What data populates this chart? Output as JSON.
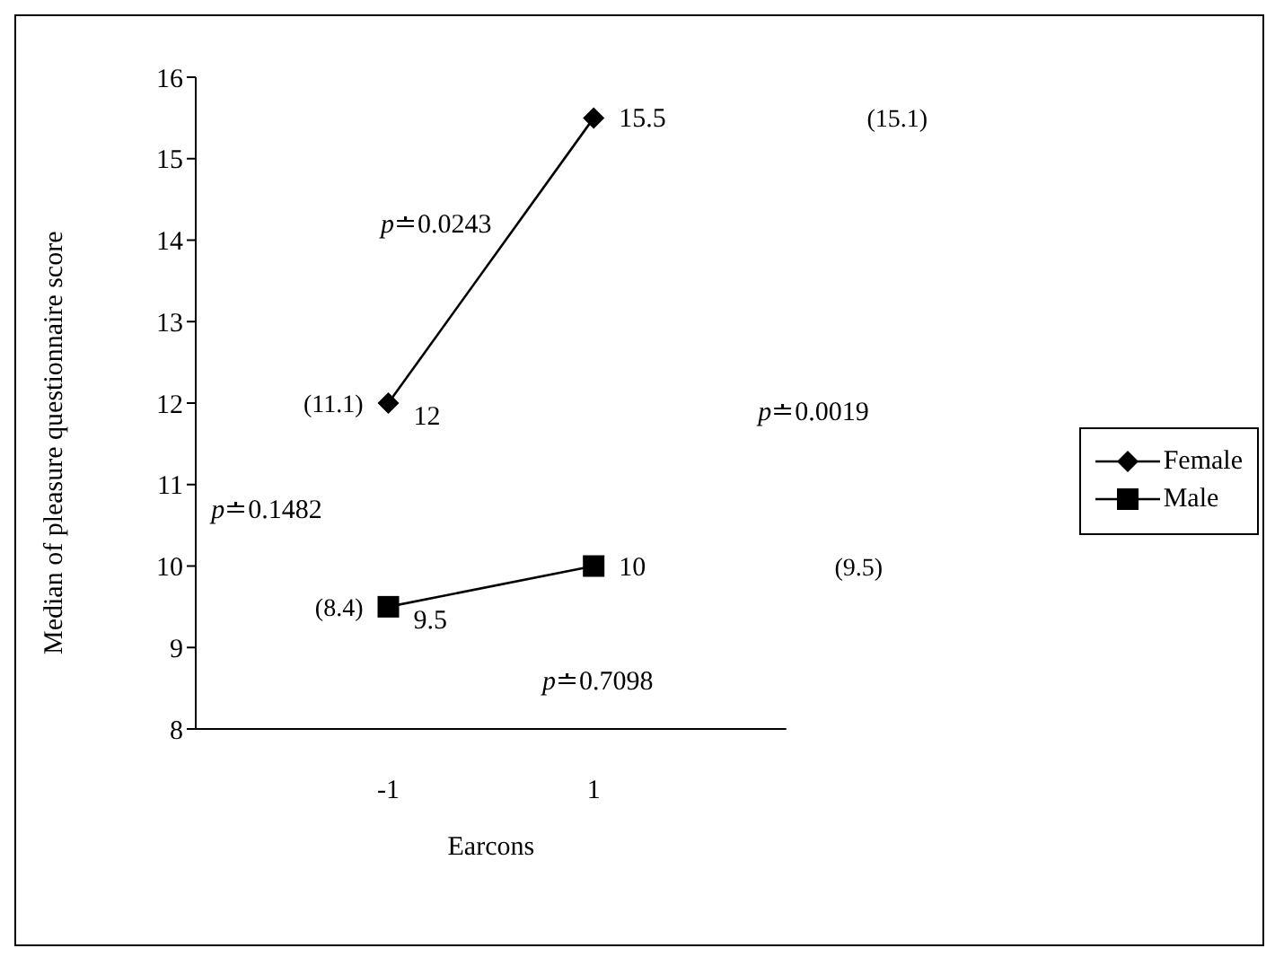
{
  "chart_data": {
    "type": "line",
    "xlabel": "Earcons",
    "ylabel": "Median of pleasure questionnaire score",
    "categories": [
      "-1",
      "1"
    ],
    "ylim": [
      8,
      16
    ],
    "yticks": [
      8,
      9,
      10,
      11,
      12,
      13,
      14,
      15,
      16
    ],
    "legend": "right",
    "series": [
      {
        "name": "Female",
        "color": "#000000",
        "marker": "diamond",
        "values": [
          12,
          15.5
        ],
        "value_labels": [
          "12",
          "15.5"
        ]
      },
      {
        "name": "Male",
        "color": "#000000",
        "marker": "square",
        "values": [
          9.5,
          10
        ],
        "value_labels": [
          "9.5",
          "10"
        ]
      }
    ],
    "annotations": [
      "(11.1)",
      "(15.1)",
      "(8.4)",
      "(9.5)",
      "p≐0.0243",
      "p≐0.0019",
      "p≐0.1482",
      "p≐0.7098"
    ]
  }
}
